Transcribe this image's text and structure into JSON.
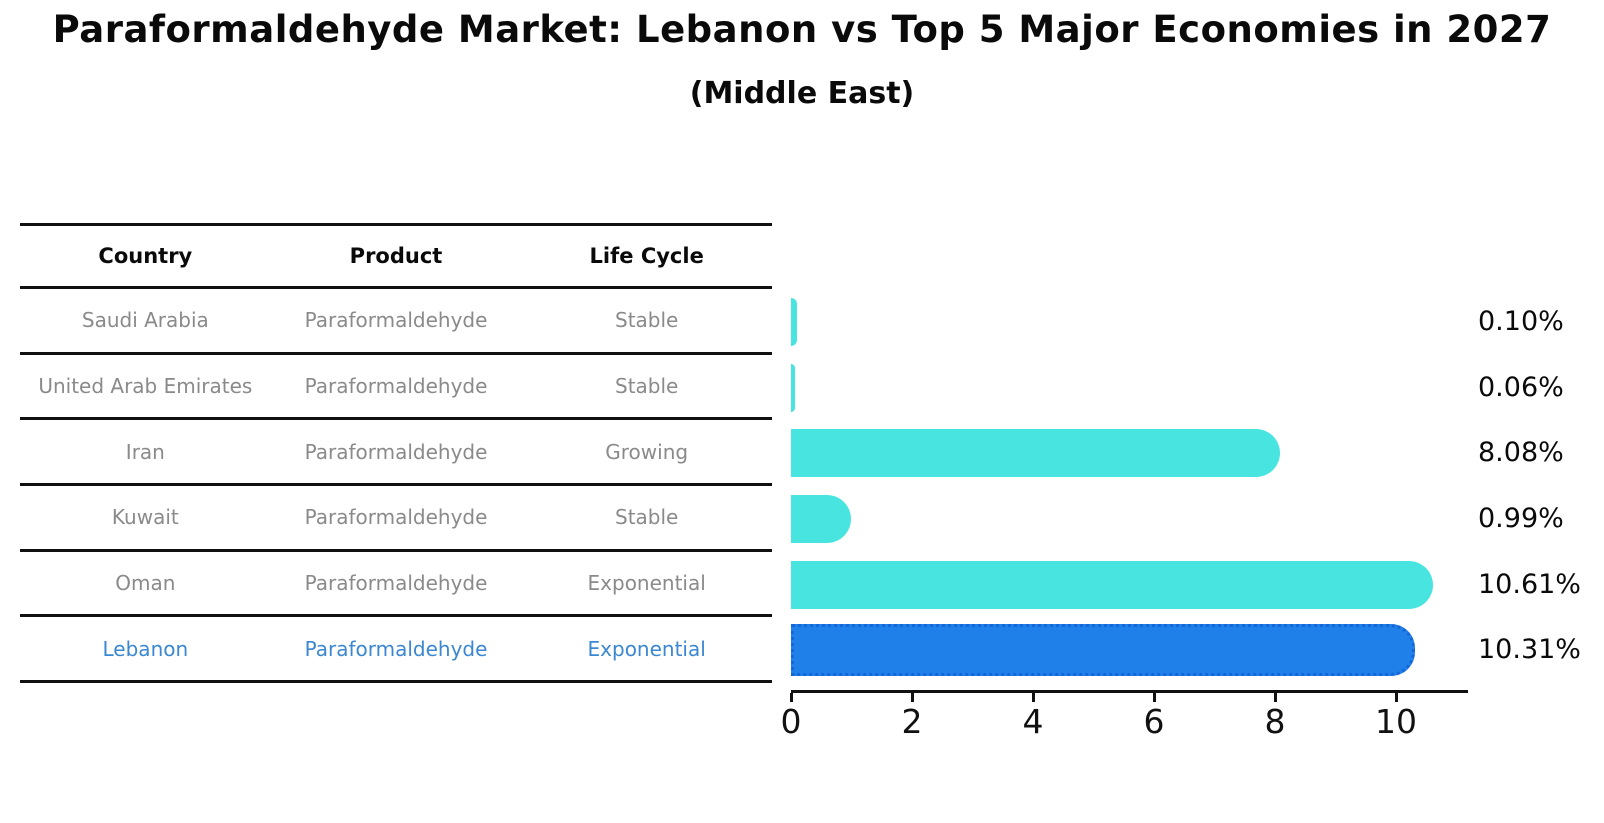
{
  "title": "Paraformaldehyde Market: Lebanon vs Top 5 Major Economies in 2027",
  "subtitle": "(Middle East)",
  "table": {
    "headers": [
      "Country",
      "Product",
      "Life Cycle"
    ]
  },
  "rows": [
    {
      "country": "Saudi Arabia",
      "product": "Paraformaldehyde",
      "life_cycle": "Stable",
      "value": 0.1,
      "value_label": "0.10%",
      "highlight": false
    },
    {
      "country": "United Arab Emirates",
      "product": "Paraformaldehyde",
      "life_cycle": "Stable",
      "value": 0.06,
      "value_label": "0.06%",
      "highlight": false
    },
    {
      "country": "Iran",
      "product": "Paraformaldehyde",
      "life_cycle": "Growing",
      "value": 8.08,
      "value_label": "8.08%",
      "highlight": false
    },
    {
      "country": "Kuwait",
      "product": "Paraformaldehyde",
      "life_cycle": "Stable",
      "value": 0.99,
      "value_label": "0.99%",
      "highlight": false
    },
    {
      "country": "Oman",
      "product": "Paraformaldehyde",
      "life_cycle": "Exponential",
      "value": 10.61,
      "value_label": "10.61%",
      "highlight": false
    },
    {
      "country": "Lebanon",
      "product": "Paraformaldehyde",
      "life_cycle": "Exponential",
      "value": 10.31,
      "value_label": "10.31%",
      "highlight": true
    }
  ],
  "chart_data": {
    "type": "bar",
    "orientation": "horizontal",
    "title": "Paraformaldehyde Market: Lebanon vs Top 5 Major Economies in 2027",
    "subtitle": "(Middle East)",
    "categories": [
      "Saudi Arabia",
      "United Arab Emirates",
      "Iran",
      "Kuwait",
      "Oman",
      "Lebanon"
    ],
    "values": [
      0.1,
      0.06,
      8.08,
      0.99,
      10.61,
      10.31
    ],
    "value_labels": [
      "0.10%",
      "0.06%",
      "8.08%",
      "0.99%",
      "10.61%",
      "10.31%"
    ],
    "xlabel": "",
    "ylabel": "",
    "xticks": [
      0,
      2,
      4,
      6,
      8,
      10
    ],
    "xlim": [
      0,
      11.2
    ],
    "grid": false,
    "legend": false,
    "highlight_index": 5,
    "colors": {
      "bar": "#48E5E0",
      "highlight_bar": "#1E80E8",
      "highlight_border": "#1566D8",
      "highlight_text": "#3B87D2",
      "row_text": "#8a8a8a",
      "axis": "#111111",
      "value_text": "#0a0a0a"
    }
  }
}
